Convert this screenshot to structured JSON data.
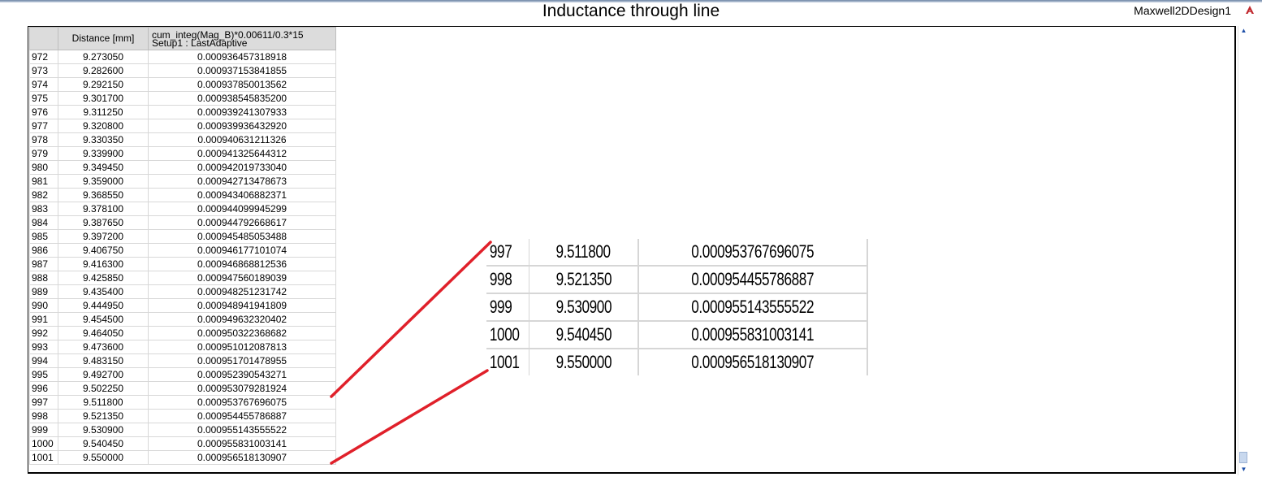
{
  "header": {
    "title": "Inductance through line",
    "design_name": "Maxwell2DDesign1",
    "ansys_icon": "ansys-logo-icon"
  },
  "table": {
    "columns": {
      "index": "",
      "distance": "Distance [mm]",
      "value_line1": "cum_integ(Mag_B)*0.00611/0.3*15",
      "value_line2": "Setup1 : LastAdaptive"
    },
    "rows": [
      {
        "index": "972",
        "distance": "9.273050",
        "value": "0.000936457318918"
      },
      {
        "index": "973",
        "distance": "9.282600",
        "value": "0.000937153841855"
      },
      {
        "index": "974",
        "distance": "9.292150",
        "value": "0.000937850013562"
      },
      {
        "index": "975",
        "distance": "9.301700",
        "value": "0.000938545835200"
      },
      {
        "index": "976",
        "distance": "9.311250",
        "value": "0.000939241307933"
      },
      {
        "index": "977",
        "distance": "9.320800",
        "value": "0.000939936432920"
      },
      {
        "index": "978",
        "distance": "9.330350",
        "value": "0.000940631211326"
      },
      {
        "index": "979",
        "distance": "9.339900",
        "value": "0.000941325644312"
      },
      {
        "index": "980",
        "distance": "9.349450",
        "value": "0.000942019733040"
      },
      {
        "index": "981",
        "distance": "9.359000",
        "value": "0.000942713478673"
      },
      {
        "index": "982",
        "distance": "9.368550",
        "value": "0.000943406882371"
      },
      {
        "index": "983",
        "distance": "9.378100",
        "value": "0.000944099945299"
      },
      {
        "index": "984",
        "distance": "9.387650",
        "value": "0.000944792668617"
      },
      {
        "index": "985",
        "distance": "9.397200",
        "value": "0.000945485053488"
      },
      {
        "index": "986",
        "distance": "9.406750",
        "value": "0.000946177101074"
      },
      {
        "index": "987",
        "distance": "9.416300",
        "value": "0.000946868812536"
      },
      {
        "index": "988",
        "distance": "9.425850",
        "value": "0.000947560189039"
      },
      {
        "index": "989",
        "distance": "9.435400",
        "value": "0.000948251231742"
      },
      {
        "index": "990",
        "distance": "9.444950",
        "value": "0.000948941941809"
      },
      {
        "index": "991",
        "distance": "9.454500",
        "value": "0.000949632320402"
      },
      {
        "index": "992",
        "distance": "9.464050",
        "value": "0.000950322368682"
      },
      {
        "index": "993",
        "distance": "9.473600",
        "value": "0.000951012087813"
      },
      {
        "index": "994",
        "distance": "9.483150",
        "value": "0.000951701478955"
      },
      {
        "index": "995",
        "distance": "9.492700",
        "value": "0.000952390543271"
      },
      {
        "index": "996",
        "distance": "9.502250",
        "value": "0.000953079281924"
      },
      {
        "index": "997",
        "distance": "9.511800",
        "value": "0.000953767696075"
      },
      {
        "index": "998",
        "distance": "9.521350",
        "value": "0.000954455786887"
      },
      {
        "index": "999",
        "distance": "9.530900",
        "value": "0.000955143555522"
      },
      {
        "index": "1000",
        "distance": "9.540450",
        "value": "0.000955831003141"
      },
      {
        "index": "1001",
        "distance": "9.550000",
        "value": "0.000956518130907"
      }
    ]
  },
  "zoom_rows": [
    {
      "index": "997",
      "distance": "9.511800",
      "value": "0.000953767696075"
    },
    {
      "index": "998",
      "distance": "9.521350",
      "value": "0.000954455786887"
    },
    {
      "index": "999",
      "distance": "9.530900",
      "value": "0.000955143555522"
    },
    {
      "index": "1000",
      "distance": "9.540450",
      "value": "0.000955831003141"
    },
    {
      "index": "1001",
      "distance": "9.550000",
      "value": "0.000956518130907"
    }
  ],
  "annotation": {
    "line_color": "#e0202a"
  },
  "scrollbar": {
    "up_icon": "chevron-up-icon",
    "down_icon": "chevron-down-icon"
  }
}
